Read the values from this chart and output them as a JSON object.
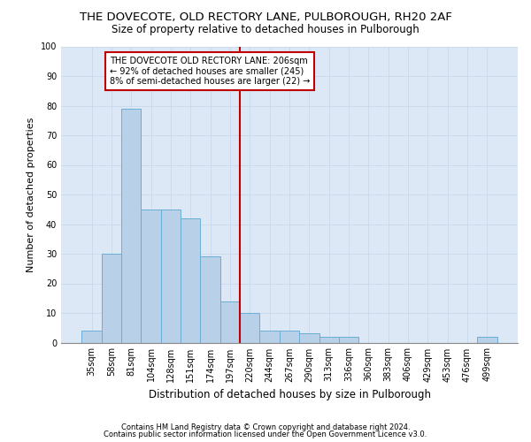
{
  "title": "THE DOVECOTE, OLD RECTORY LANE, PULBOROUGH, RH20 2AF",
  "subtitle": "Size of property relative to detached houses in Pulborough",
  "xlabel": "Distribution of detached houses by size in Pulborough",
  "ylabel": "Number of detached properties",
  "categories": [
    "35sqm",
    "58sqm",
    "81sqm",
    "104sqm",
    "128sqm",
    "151sqm",
    "174sqm",
    "197sqm",
    "220sqm",
    "244sqm",
    "267sqm",
    "290sqm",
    "313sqm",
    "336sqm",
    "360sqm",
    "383sqm",
    "406sqm",
    "429sqm",
    "453sqm",
    "476sqm",
    "499sqm"
  ],
  "values": [
    4,
    30,
    79,
    45,
    45,
    42,
    29,
    14,
    10,
    4,
    4,
    3,
    2,
    2,
    0,
    0,
    0,
    0,
    0,
    0,
    2
  ],
  "bar_color": "#b8d0e8",
  "bar_edge_color": "#6aaed6",
  "vline_color": "#c00000",
  "annotation_text": "THE DOVECOTE OLD RECTORY LANE: 206sqm\n← 92% of detached houses are smaller (245)\n8% of semi-detached houses are larger (22) →",
  "annotation_box_color": "#c00000",
  "ylim": [
    0,
    100
  ],
  "yticks": [
    0,
    10,
    20,
    30,
    40,
    50,
    60,
    70,
    80,
    90,
    100
  ],
  "grid_color": "#c8d8ec",
  "background_color": "#dce8f5",
  "footer_line1": "Contains HM Land Registry data © Crown copyright and database right 2024.",
  "footer_line2": "Contains public sector information licensed under the Open Government Licence v3.0.",
  "title_fontsize": 9.5,
  "subtitle_fontsize": 8.5,
  "axis_label_fontsize": 8,
  "tick_fontsize": 7,
  "annotation_fontsize": 7,
  "footer_fontsize": 6
}
